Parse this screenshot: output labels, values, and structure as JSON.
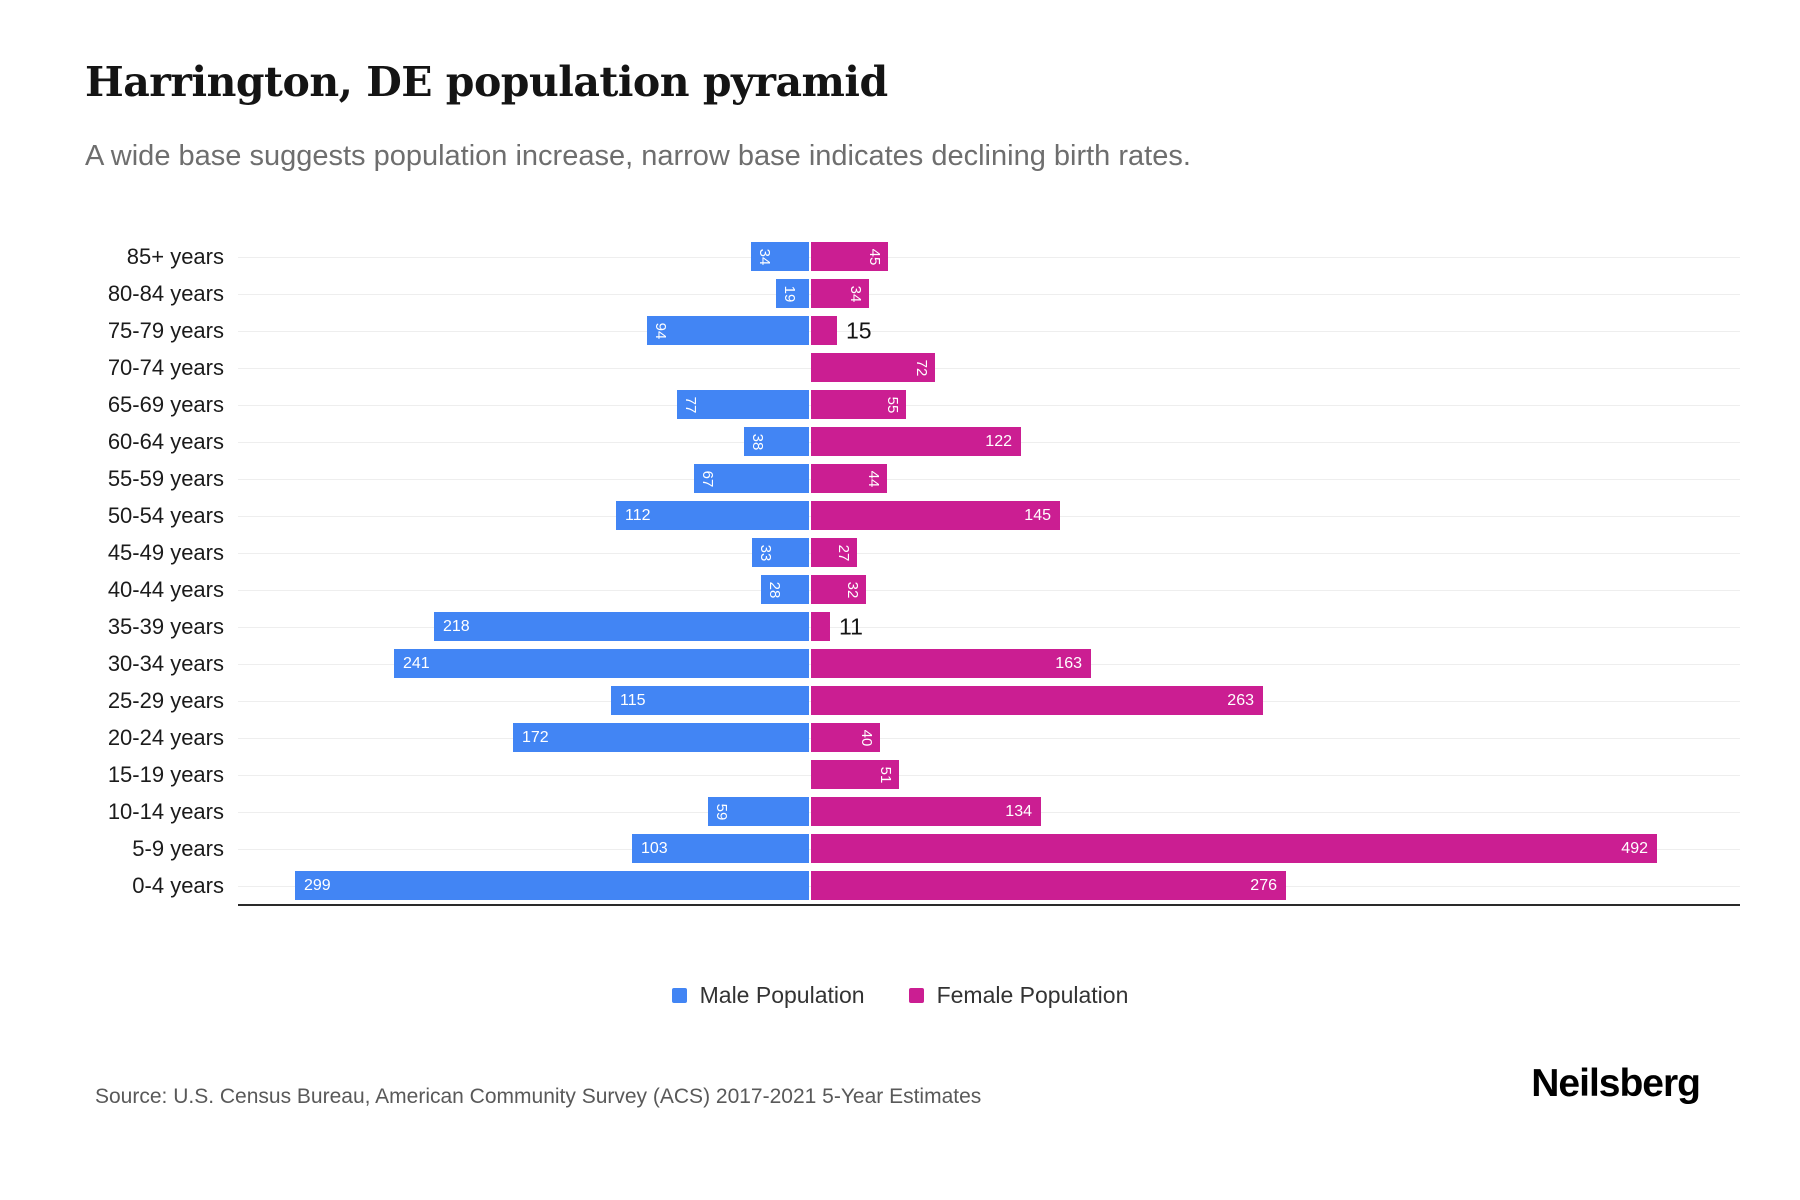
{
  "header": {
    "title": "Harrington, DE population pyramid",
    "subtitle": "A wide base suggests population increase, narrow base indicates declining birth rates."
  },
  "chart_data": {
    "type": "bar",
    "variant": "population-pyramid",
    "title": "Harrington, DE population pyramid",
    "subtitle": "A wide base suggests population increase, narrow base indicates declining birth rates.",
    "categories": [
      "85+ years",
      "80-84 years",
      "75-79 years",
      "70-74 years",
      "65-69 years",
      "60-64 years",
      "55-59 years",
      "50-54 years",
      "45-49 years",
      "40-44 years",
      "35-39 years",
      "30-34 years",
      "25-29 years",
      "20-24 years",
      "15-19 years",
      "10-14 years",
      "5-9 years",
      "0-4 years"
    ],
    "series": [
      {
        "name": "Male Population",
        "color": "#4285f4",
        "values": [
          34,
          19,
          94,
          0,
          77,
          38,
          67,
          112,
          33,
          28,
          218,
          241,
          115,
          172,
          0,
          59,
          103,
          299
        ]
      },
      {
        "name": "Female Population",
        "color": "#cb1e92",
        "values": [
          45,
          34,
          15,
          72,
          55,
          122,
          44,
          145,
          27,
          32,
          11,
          163,
          263,
          40,
          51,
          134,
          492,
          276
        ]
      }
    ],
    "value_labels": true,
    "grid": true,
    "legend_position": "bottom",
    "max_value": 492
  },
  "footer": {
    "source": "Source: U.S. Census Bureau, American Community Survey (ACS) 2017-2021 5-Year Estimates",
    "brand": "Neilsberg"
  }
}
